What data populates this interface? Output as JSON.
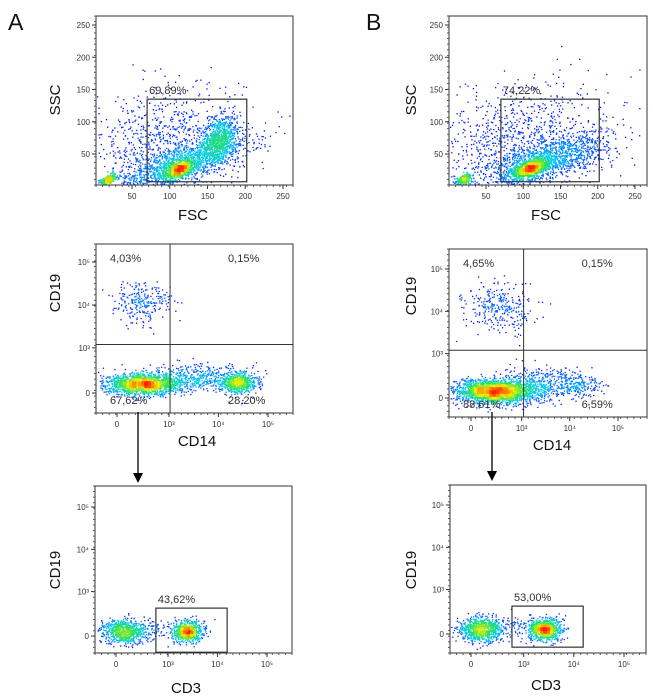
{
  "figure": {
    "panel_letters": [
      "A",
      "B"
    ]
  },
  "colors": {
    "frame": "#333333",
    "gate": "#333333",
    "arrow": "#000000",
    "density_colormap": [
      "#0000ff",
      "#00c8ff",
      "#28e05a",
      "#f0f000",
      "#ff2000"
    ]
  },
  "chart_data": [
    {
      "id": "A1",
      "type": "scatter",
      "column": "A",
      "xlabel": "FSC",
      "ylabel": "SSC",
      "xscale": "linear",
      "yscale": "linear",
      "xlim": [
        0,
        262
      ],
      "ylim": [
        0,
        262
      ],
      "xticks": [
        {
          "v": 50,
          "label": "50"
        },
        {
          "v": 100,
          "label": "100"
        },
        {
          "v": 150,
          "label": "150"
        },
        {
          "v": 200,
          "label": "200"
        },
        {
          "v": 250,
          "label": "250"
        }
      ],
      "yticks": [
        {
          "v": 50,
          "label": "50"
        },
        {
          "v": 100,
          "label": "100"
        },
        {
          "v": 150,
          "label": "150"
        },
        {
          "v": 200,
          "label": "200"
        },
        {
          "v": 250,
          "label": "250"
        }
      ],
      "gates": [
        {
          "type": "rect",
          "x": [
            70,
            202
          ],
          "y": [
            7,
            135
          ],
          "label": "69,89%"
        }
      ],
      "clusters": [
        {
          "center": [
            18,
            11
          ],
          "spread": [
            5,
            4
          ],
          "rho": 0.5,
          "n": 300
        },
        {
          "center": [
            112,
            26
          ],
          "spread": [
            9,
            7
          ],
          "rho": 0.5,
          "n": 700
        },
        {
          "center": [
            165,
            75
          ],
          "spread": [
            12,
            17
          ],
          "rho": 0.3,
          "n": 800
        },
        {
          "center": [
            115,
            35
          ],
          "spread": [
            45,
            20
          ],
          "rho": 0.75,
          "n": 1400
        },
        {
          "center": [
            95,
            65
          ],
          "spread": [
            50,
            45
          ],
          "rho": 0.2,
          "n": 900
        }
      ]
    },
    {
      "id": "B1",
      "type": "scatter",
      "column": "B",
      "xlabel": "FSC",
      "ylabel": "SSC",
      "xscale": "linear",
      "yscale": "linear",
      "xlim": [
        0,
        262
      ],
      "ylim": [
        0,
        262
      ],
      "xticks": [
        {
          "v": 50,
          "label": "50"
        },
        {
          "v": 100,
          "label": "100"
        },
        {
          "v": 150,
          "label": "150"
        },
        {
          "v": 200,
          "label": "200"
        },
        {
          "v": 250,
          "label": "250"
        }
      ],
      "yticks": [
        {
          "v": 50,
          "label": "50"
        },
        {
          "v": 100,
          "label": "100"
        },
        {
          "v": 150,
          "label": "150"
        },
        {
          "v": 200,
          "label": "200"
        },
        {
          "v": 250,
          "label": "250"
        }
      ],
      "gates": [
        {
          "type": "rect",
          "x": [
            70,
            202
          ],
          "y": [
            7,
            135
          ],
          "label": "74,22%"
        }
      ],
      "clusters": [
        {
          "center": [
            20,
            12
          ],
          "spread": [
            5,
            4
          ],
          "rho": 0.5,
          "n": 300
        },
        {
          "center": [
            108,
            28
          ],
          "spread": [
            12,
            8
          ],
          "rho": 0.6,
          "n": 1100
        },
        {
          "center": [
            135,
            42
          ],
          "spread": [
            42,
            20
          ],
          "rho": 0.65,
          "n": 1200
        },
        {
          "center": [
            100,
            70
          ],
          "spread": [
            55,
            45
          ],
          "rho": 0.2,
          "n": 1000
        }
      ]
    },
    {
      "id": "A2",
      "type": "scatter",
      "column": "A",
      "xlabel": "CD14",
      "ylabel": "CD19",
      "xscale": "biexponential",
      "yscale": "biexponential",
      "xticks": [
        {
          "v": 0,
          "label": "0"
        },
        {
          "v": 1000,
          "label": "10³"
        },
        {
          "v": 10000,
          "label": "10⁴"
        },
        {
          "v": 100000,
          "label": "10⁵"
        }
      ],
      "yticks": [
        {
          "v": 0,
          "label": "0"
        },
        {
          "v": 1000,
          "label": "10³"
        },
        {
          "v": 10000,
          "label": "10⁴"
        },
        {
          "v": 100000,
          "label": "10⁵"
        }
      ],
      "gates": [
        {
          "type": "quadrant",
          "x": 1050,
          "y": 1200,
          "labels": {
            "UL": "4,03%",
            "UR": "0,15%",
            "LL": "67,62%",
            "LR": "28,20%"
          }
        }
      ],
      "clusters": [
        {
          "center": [
            250,
            12000
          ],
          "spread": [
            0.3,
            0.25
          ],
          "rho": 0,
          "n": 250
        },
        {
          "center": [
            280,
            90
          ],
          "spread": [
            0.38,
            0.12
          ],
          "rho": 0,
          "n": 1800
        },
        {
          "center": [
            25000,
            110
          ],
          "spread": [
            0.18,
            0.12
          ],
          "rho": 0,
          "n": 650
        },
        {
          "center": [
            3500,
            170
          ],
          "spread": [
            0.5,
            0.15
          ],
          "rho": 0,
          "n": 450
        }
      ]
    },
    {
      "id": "B2",
      "type": "scatter",
      "column": "B",
      "xlabel": "CD14",
      "ylabel": "CD19",
      "xscale": "biexponential",
      "yscale": "biexponential",
      "xticks": [
        {
          "v": 0,
          "label": "0"
        },
        {
          "v": 1000,
          "label": "10³"
        },
        {
          "v": 10000,
          "label": "10⁴"
        },
        {
          "v": 100000,
          "label": "10⁵"
        }
      ],
      "yticks": [
        {
          "v": 0,
          "label": "0"
        },
        {
          "v": 1000,
          "label": "10³"
        },
        {
          "v": 10000,
          "label": "10⁴"
        },
        {
          "v": 100000,
          "label": "10⁵"
        }
      ],
      "gates": [
        {
          "type": "quadrant",
          "x": 1100,
          "y": 1200,
          "labels": {
            "UL": "4,65%",
            "UR": "0,15%",
            "LL": "88,61%",
            "LR": "6,59%"
          }
        }
      ],
      "clusters": [
        {
          "center": [
            320,
            12000
          ],
          "spread": [
            0.35,
            0.28
          ],
          "rho": 0,
          "n": 300
        },
        {
          "center": [
            260,
            70
          ],
          "spread": [
            0.42,
            0.14
          ],
          "rho": 0,
          "n": 2500
        },
        {
          "center": [
            16000,
            150
          ],
          "spread": [
            0.25,
            0.14
          ],
          "rho": 0,
          "n": 180
        },
        {
          "center": [
            2500,
            160
          ],
          "spread": [
            0.4,
            0.18
          ],
          "rho": 0,
          "n": 400
        }
      ]
    },
    {
      "id": "A3",
      "type": "scatter",
      "column": "A",
      "xlabel": "CD3",
      "ylabel": "CD19",
      "xscale": "biexponential",
      "yscale": "biexponential",
      "xticks": [
        {
          "v": 0,
          "label": "0"
        },
        {
          "v": 1000,
          "label": "10³"
        },
        {
          "v": 10000,
          "label": "10⁴"
        },
        {
          "v": 100000,
          "label": "10⁵"
        }
      ],
      "yticks": [
        {
          "v": 0,
          "label": "0"
        },
        {
          "v": 1000,
          "label": "10³"
        },
        {
          "v": 10000,
          "label": "10⁴"
        },
        {
          "v": 100000,
          "label": "10⁵"
        }
      ],
      "gates": [
        {
          "type": "rect",
          "x": [
            560,
            15700
          ],
          "y": [
            -180,
            390
          ],
          "label": "43,62%"
        }
      ],
      "clusters": [
        {
          "center": [
            60,
            50
          ],
          "spread": [
            0.22,
            0.14
          ],
          "rho": 0,
          "n": 750
        },
        {
          "center": [
            2500,
            50
          ],
          "spread": [
            0.16,
            0.12
          ],
          "rho": 0,
          "n": 750
        },
        {
          "center": [
            400,
            60
          ],
          "spread": [
            0.2,
            0.15
          ],
          "rho": 0,
          "n": 80
        }
      ]
    },
    {
      "id": "B3",
      "type": "scatter",
      "column": "B",
      "xlabel": "CD3",
      "ylabel": "CD19",
      "xscale": "biexponential",
      "yscale": "biexponential",
      "xticks": [
        {
          "v": 0,
          "label": "0"
        },
        {
          "v": 1000,
          "label": "10³"
        },
        {
          "v": 10000,
          "label": "10⁴"
        },
        {
          "v": 100000,
          "label": "10⁵"
        }
      ],
      "yticks": [
        {
          "v": 0,
          "label": "0"
        },
        {
          "v": 1000,
          "label": "10³"
        },
        {
          "v": 10000,
          "label": "10⁴"
        },
        {
          "v": 100000,
          "label": "10⁵"
        }
      ],
      "gates": [
        {
          "type": "rect",
          "x": [
            575,
            15400
          ],
          "y": [
            -140,
            390
          ],
          "label": "53,00%"
        }
      ],
      "clusters": [
        {
          "center": [
            70,
            50
          ],
          "spread": [
            0.2,
            0.15
          ],
          "rho": 0,
          "n": 850
        },
        {
          "center": [
            2500,
            50
          ],
          "spread": [
            0.17,
            0.13
          ],
          "rho": 0,
          "n": 950
        },
        {
          "center": [
            400,
            70
          ],
          "spread": [
            0.2,
            0.15
          ],
          "rho": 0,
          "n": 90
        }
      ]
    }
  ]
}
